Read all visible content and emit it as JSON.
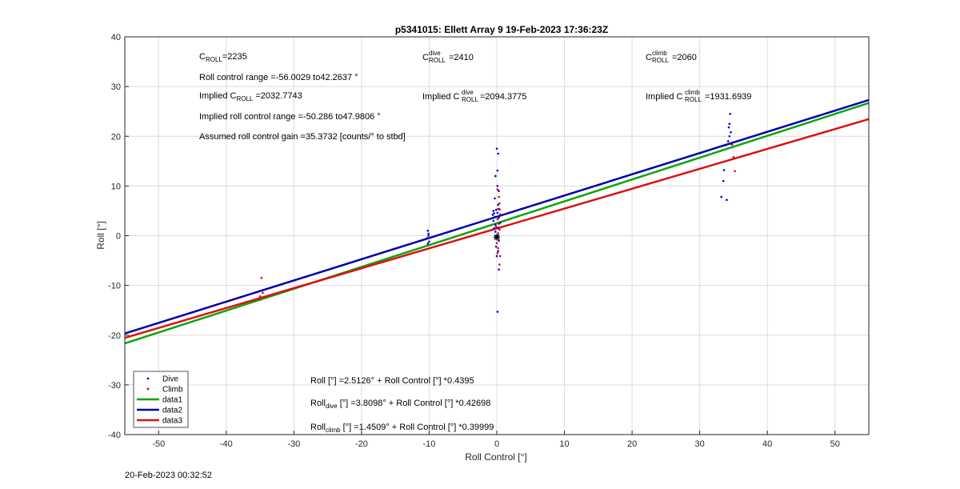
{
  "chart_data": {
    "type": "scatter",
    "title": "p5341015: Ellett Array 9 19-Feb-2023 17:36:23Z",
    "xlabel": "Roll Control [°]",
    "ylabel": "Roll [°]",
    "xlim": [
      -55,
      55
    ],
    "ylim": [
      -40,
      40
    ],
    "xticks": [
      -50,
      -40,
      -30,
      -20,
      -10,
      0,
      10,
      20,
      30,
      40,
      50
    ],
    "yticks": [
      -40,
      -30,
      -20,
      -10,
      0,
      10,
      20,
      30,
      40
    ],
    "grid": true,
    "legend_position": "bottom-left",
    "series": [
      {
        "name": "Dive",
        "kind": "points",
        "color": "#0000cc",
        "points": [
          [
            -10.2,
            1
          ],
          [
            -10.1,
            0
          ],
          [
            -10.3,
            -0.5
          ],
          [
            -10.0,
            -1.2
          ],
          [
            -10.2,
            -1.6
          ],
          [
            -10.1,
            0.4
          ],
          [
            -0.5,
            5
          ],
          [
            -0.4,
            4.5
          ],
          [
            -0.3,
            3.8
          ],
          [
            -0.5,
            3
          ],
          [
            -0.2,
            2.2
          ],
          [
            -0.4,
            1.5
          ],
          [
            -0.6,
            4.2
          ],
          [
            -0.1,
            5.2
          ],
          [
            0,
            17.5
          ],
          [
            0.2,
            16.5
          ],
          [
            0.1,
            13.1
          ],
          [
            -0.2,
            12
          ],
          [
            0.1,
            10
          ],
          [
            0.3,
            9
          ],
          [
            -0.3,
            7.5
          ],
          [
            0.2,
            6.2
          ],
          [
            0.4,
            5.3
          ],
          [
            0.1,
            4.6
          ],
          [
            0.3,
            3.6
          ],
          [
            0.5,
            2.6
          ],
          [
            0.2,
            1.6
          ],
          [
            -0.2,
            0.8
          ],
          [
            0.1,
            0
          ],
          [
            0.3,
            -1
          ],
          [
            -0.1,
            -2.2
          ],
          [
            0.2,
            -3.1
          ],
          [
            0,
            -4.1
          ],
          [
            0.3,
            -6.8
          ],
          [
            0.1,
            -15.3
          ],
          [
            34.5,
            24.5
          ],
          [
            34.4,
            22.5
          ],
          [
            34.3,
            21.8
          ],
          [
            34.6,
            20.8
          ],
          [
            34.4,
            20
          ],
          [
            34.2,
            19
          ],
          [
            34.5,
            18.5
          ],
          [
            33.8,
            18.2
          ],
          [
            33.6,
            13.2
          ],
          [
            33.5,
            11
          ],
          [
            33.2,
            7.8
          ],
          [
            34,
            7.2
          ]
        ]
      },
      {
        "name": "Climb",
        "kind": "points",
        "color": "#dd0000",
        "points": [
          [
            -34.8,
            -8.5
          ],
          [
            -35,
            -12.2
          ],
          [
            -34.6,
            -11.5
          ],
          [
            -35.2,
            -12.8
          ],
          [
            0.1,
            9.3
          ],
          [
            0.3,
            7.8
          ],
          [
            0.4,
            6.5
          ],
          [
            0.2,
            5.4
          ],
          [
            0.5,
            4.3
          ],
          [
            0.1,
            3.3
          ],
          [
            0.3,
            2.4
          ],
          [
            -0.1,
            1.8
          ],
          [
            0.4,
            1.2
          ],
          [
            0.2,
            0.5
          ],
          [
            0,
            -1.5
          ],
          [
            0.1,
            -3.5
          ],
          [
            0.4,
            -5.8
          ],
          [
            0.5,
            -4.1
          ],
          [
            0.2,
            -2.5
          ],
          [
            35,
            15.8
          ],
          [
            35.2,
            13
          ],
          [
            34.8,
            18.3
          ]
        ]
      },
      {
        "name": "data1",
        "kind": "line",
        "color": "#0aa50a",
        "intercept": 2.5126,
        "slope": 0.4395
      },
      {
        "name": "data2",
        "kind": "line",
        "color": "#0000aa",
        "intercept": 3.8098,
        "slope": 0.42698
      },
      {
        "name": "data3",
        "kind": "line",
        "color": "#dd1111",
        "intercept": 1.4509,
        "slope": 0.39999
      }
    ],
    "marker_point": [
      0,
      -0.3
    ],
    "annotations": {
      "c_roll_label": "C",
      "c_roll_sub": "ROLL",
      "c_roll_value": "=2235",
      "roll_control_range": "Roll control range =-56.0029 to42.2637 °",
      "implied_c_roll_prefix": "Implied C",
      "implied_c_roll_sub": "ROLL",
      "implied_c_roll_value": "=2032.7743",
      "implied_roll_range": "Implied roll control range =-50.286 to47.9806 °",
      "assumed_gain": "Assumed roll control gain =35.3732 [counts/° to stbd]",
      "c_dive_label": "C",
      "c_dive_sup": "dive",
      "c_dive_sub": "ROLL",
      "c_dive_value": "=2410",
      "implied_c_dive_prefix": "Implied C",
      "implied_c_dive_sup": "dive",
      "implied_c_dive_sub": "ROLL",
      "implied_c_dive_value": "=2094.3775",
      "c_climb_label": "C",
      "c_climb_sup": "climb",
      "c_climb_sub": "ROLL",
      "c_climb_value": "=2060",
      "implied_c_climb_prefix": "Implied C",
      "implied_c_climb_sup": "climb",
      "implied_c_climb_sub": "ROLL",
      "implied_c_climb_value": "=1931.6939",
      "eq_all": "Roll [°] =2.5126° + Roll Control [°] *0.4395",
      "eq_dive_prefix": "Roll",
      "eq_dive_sub": "dive",
      "eq_dive_rest": " [°] =3.8098° + Roll Control [°] *0.42698",
      "eq_climb_prefix": "Roll",
      "eq_climb_sub": "climb",
      "eq_climb_rest": " [°] =1.4509° + Roll Control [°] *0.39999"
    }
  },
  "footer": {
    "timestamp": "20-Feb-2023 00:32:52"
  }
}
